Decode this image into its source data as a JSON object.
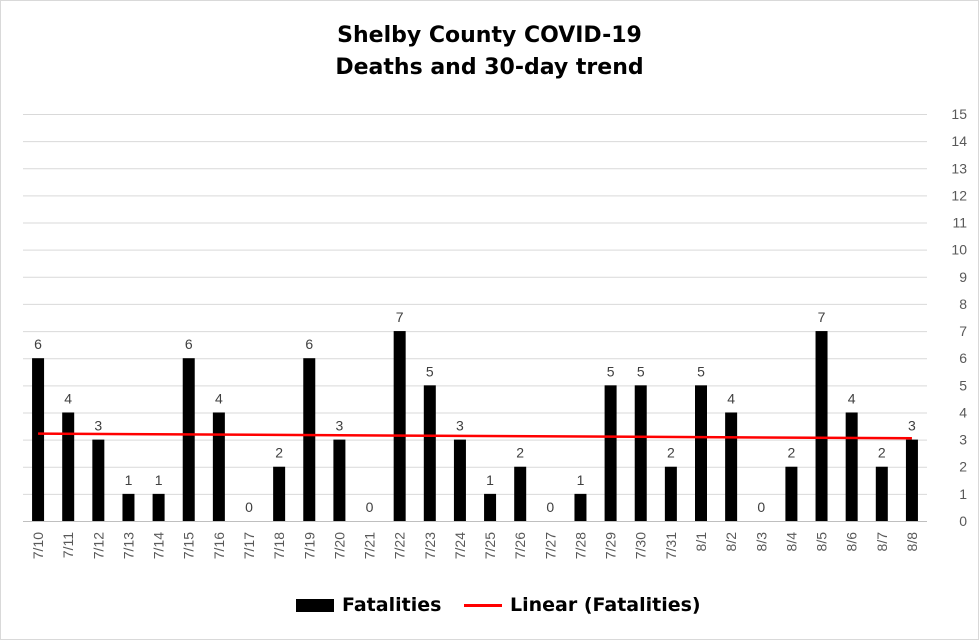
{
  "chart_data": {
    "type": "bar",
    "title_line1": "Shelby County COVID-19",
    "title_line2": "Deaths and 30-day trend",
    "categories": [
      "7/10",
      "7/11",
      "7/12",
      "7/13",
      "7/14",
      "7/15",
      "7/16",
      "7/17",
      "7/18",
      "7/19",
      "7/20",
      "7/21",
      "7/22",
      "7/23",
      "7/24",
      "7/25",
      "7/26",
      "7/27",
      "7/28",
      "7/29",
      "7/30",
      "7/31",
      "8/1",
      "8/2",
      "8/3",
      "8/4",
      "8/5",
      "8/6",
      "8/7",
      "8/8"
    ],
    "series": [
      {
        "name": "Fatalities",
        "color": "#000000",
        "values": [
          6,
          4,
          3,
          1,
          1,
          6,
          4,
          0,
          2,
          6,
          3,
          0,
          7,
          5,
          3,
          1,
          2,
          0,
          1,
          5,
          5,
          2,
          5,
          4,
          0,
          2,
          7,
          4,
          2,
          3
        ]
      }
    ],
    "trendline": {
      "name": "Linear (Fatalities)",
      "color": "#ff0000",
      "start": 3.22,
      "end": 3.05
    },
    "y_axis": {
      "min": 0,
      "max": 15,
      "step": 1,
      "position": "right"
    },
    "grid": true,
    "legend": "bottom",
    "data_labels": true
  }
}
